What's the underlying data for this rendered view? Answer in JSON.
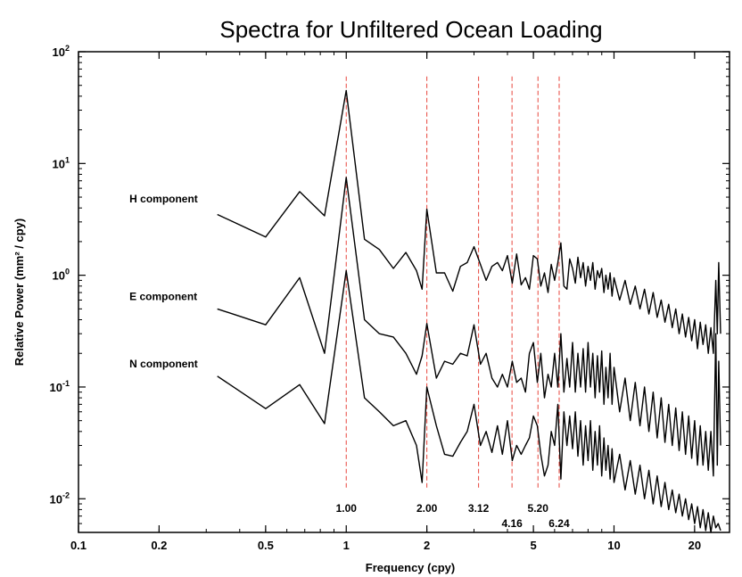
{
  "chart_data": {
    "type": "line",
    "title": "Spectra for Unfiltered Ocean Loading",
    "xlabel": "Frequency (cpy)",
    "ylabel": "Relative Power (mm² / cpy)",
    "x_scale": "log",
    "y_scale": "log",
    "xlim": [
      0.1,
      27
    ],
    "ylim": [
      0.005,
      100
    ],
    "x_ticks": [
      {
        "value": 0.1,
        "label": "0.1"
      },
      {
        "value": 0.2,
        "label": "0.2"
      },
      {
        "value": 0.5,
        "label": "0.5"
      },
      {
        "value": 1,
        "label": "1"
      },
      {
        "value": 2,
        "label": "2"
      },
      {
        "value": 5,
        "label": "5"
      },
      {
        "value": 10,
        "label": "10"
      },
      {
        "value": 20,
        "label": "20"
      }
    ],
    "y_ticks": [
      {
        "value": 0.01,
        "base": "10",
        "exp": "-2"
      },
      {
        "value": 0.1,
        "base": "10",
        "exp": "-1"
      },
      {
        "value": 1,
        "base": "10",
        "exp": "0"
      },
      {
        "value": 10,
        "base": "10",
        "exp": "1"
      },
      {
        "value": 100,
        "base": "10",
        "exp": "2"
      }
    ],
    "reference_lines": [
      {
        "x": 1.0,
        "label": "1.00",
        "label_row": 1
      },
      {
        "x": 2.0,
        "label": "2.00",
        "label_row": 1
      },
      {
        "x": 3.12,
        "label": "3.12",
        "label_row": 1
      },
      {
        "x": 4.16,
        "label": "4.16",
        "label_row": 2
      },
      {
        "x": 5.2,
        "label": "5.20",
        "label_row": 1
      },
      {
        "x": 6.24,
        "label": "6.24",
        "label_row": 2
      }
    ],
    "reference_line_color": "#e8453c",
    "grid": false,
    "series": [
      {
        "name": "H component",
        "label_x": 0.155,
        "label_y": 4.5,
        "points": [
          [
            0.33,
            3.5
          ],
          [
            0.5,
            2.2
          ],
          [
            0.67,
            5.6
          ],
          [
            0.83,
            3.4
          ],
          [
            1.0,
            45
          ],
          [
            1.17,
            2.1
          ],
          [
            1.33,
            1.7
          ],
          [
            1.5,
            1.15
          ],
          [
            1.67,
            1.6
          ],
          [
            1.83,
            1.1
          ],
          [
            1.92,
            0.75
          ],
          [
            2.0,
            3.9
          ],
          [
            2.17,
            1.05
          ],
          [
            2.33,
            1.05
          ],
          [
            2.5,
            0.72
          ],
          [
            2.67,
            1.2
          ],
          [
            2.83,
            1.3
          ],
          [
            3.0,
            1.8
          ],
          [
            3.17,
            1.25
          ],
          [
            3.33,
            0.9
          ],
          [
            3.5,
            1.2
          ],
          [
            3.67,
            1.3
          ],
          [
            3.83,
            1.1
          ],
          [
            4.0,
            1.5
          ],
          [
            4.17,
            0.85
          ],
          [
            4.33,
            1.55
          ],
          [
            4.5,
            0.82
          ],
          [
            4.67,
            0.95
          ],
          [
            4.83,
            0.75
          ],
          [
            5.0,
            1.5
          ],
          [
            5.17,
            1.4
          ],
          [
            5.33,
            0.8
          ],
          [
            5.5,
            1.05
          ],
          [
            5.67,
            0.7
          ],
          [
            5.83,
            1.25
          ],
          [
            6.0,
            0.9
          ],
          [
            6.17,
            1.3
          ],
          [
            6.33,
            1.95
          ],
          [
            6.5,
            0.8
          ],
          [
            6.67,
            0.75
          ],
          [
            6.83,
            1.4
          ],
          [
            7.0,
            1.15
          ],
          [
            7.17,
            0.85
          ],
          [
            7.33,
            1.45
          ],
          [
            7.5,
            0.95
          ],
          [
            7.67,
            1.3
          ],
          [
            7.83,
            0.8
          ],
          [
            8.0,
            1.2
          ],
          [
            8.17,
            0.9
          ],
          [
            8.33,
            1.3
          ],
          [
            8.5,
            0.75
          ],
          [
            8.67,
            1.1
          ],
          [
            8.83,
            0.95
          ],
          [
            9.0,
            1.15
          ],
          [
            9.17,
            0.7
          ],
          [
            9.33,
            1.0
          ],
          [
            9.5,
            0.75
          ],
          [
            9.67,
            1.05
          ],
          [
            9.83,
            0.65
          ],
          [
            10.0,
            0.95
          ],
          [
            10.5,
            0.6
          ],
          [
            11.0,
            0.9
          ],
          [
            11.5,
            0.55
          ],
          [
            12.0,
            0.8
          ],
          [
            12.5,
            0.5
          ],
          [
            13.0,
            0.75
          ],
          [
            13.5,
            0.45
          ],
          [
            14.0,
            0.7
          ],
          [
            14.5,
            0.42
          ],
          [
            15.0,
            0.6
          ],
          [
            15.5,
            0.38
          ],
          [
            16.0,
            0.55
          ],
          [
            16.5,
            0.34
          ],
          [
            17.0,
            0.5
          ],
          [
            17.5,
            0.3
          ],
          [
            18.0,
            0.45
          ],
          [
            18.5,
            0.28
          ],
          [
            19.0,
            0.42
          ],
          [
            19.5,
            0.26
          ],
          [
            20.0,
            0.4
          ],
          [
            20.5,
            0.22
          ],
          [
            21.0,
            0.38
          ],
          [
            21.5,
            0.24
          ],
          [
            22.0,
            0.36
          ],
          [
            22.5,
            0.2
          ],
          [
            23.0,
            0.34
          ],
          [
            23.5,
            0.2
          ],
          [
            24.0,
            0.9
          ],
          [
            24.3,
            0.3
          ],
          [
            24.6,
            1.3
          ],
          [
            25.0,
            0.3
          ]
        ]
      },
      {
        "name": "E component",
        "label_x": 0.155,
        "label_y": 0.6,
        "points": [
          [
            0.33,
            0.5
          ],
          [
            0.5,
            0.36
          ],
          [
            0.67,
            0.95
          ],
          [
            0.83,
            0.2
          ],
          [
            1.0,
            7.5
          ],
          [
            1.17,
            0.4
          ],
          [
            1.33,
            0.3
          ],
          [
            1.5,
            0.28
          ],
          [
            1.67,
            0.2
          ],
          [
            1.83,
            0.13
          ],
          [
            1.92,
            0.19
          ],
          [
            2.0,
            0.37
          ],
          [
            2.17,
            0.12
          ],
          [
            2.33,
            0.17
          ],
          [
            2.5,
            0.16
          ],
          [
            2.67,
            0.2
          ],
          [
            2.83,
            0.19
          ],
          [
            3.0,
            0.36
          ],
          [
            3.17,
            0.16
          ],
          [
            3.33,
            0.2
          ],
          [
            3.5,
            0.12
          ],
          [
            3.67,
            0.1
          ],
          [
            3.83,
            0.13
          ],
          [
            4.0,
            0.1
          ],
          [
            4.17,
            0.17
          ],
          [
            4.33,
            0.11
          ],
          [
            4.5,
            0.12
          ],
          [
            4.67,
            0.09
          ],
          [
            4.83,
            0.2
          ],
          [
            5.0,
            0.25
          ],
          [
            5.17,
            0.11
          ],
          [
            5.33,
            0.2
          ],
          [
            5.5,
            0.08
          ],
          [
            5.67,
            0.13
          ],
          [
            5.83,
            0.1
          ],
          [
            6.0,
            0.2
          ],
          [
            6.17,
            0.1
          ],
          [
            6.33,
            0.3
          ],
          [
            6.5,
            0.09
          ],
          [
            6.67,
            0.18
          ],
          [
            6.83,
            0.1
          ],
          [
            7.0,
            0.25
          ],
          [
            7.17,
            0.09
          ],
          [
            7.33,
            0.2
          ],
          [
            7.5,
            0.1
          ],
          [
            7.67,
            0.22
          ],
          [
            7.83,
            0.09
          ],
          [
            8.0,
            0.25
          ],
          [
            8.17,
            0.1
          ],
          [
            8.33,
            0.2
          ],
          [
            8.5,
            0.08
          ],
          [
            8.67,
            0.19
          ],
          [
            8.83,
            0.09
          ],
          [
            9.0,
            0.21
          ],
          [
            9.17,
            0.07
          ],
          [
            9.33,
            0.15
          ],
          [
            9.5,
            0.08
          ],
          [
            9.67,
            0.2
          ],
          [
            9.83,
            0.07
          ],
          [
            10.0,
            0.15
          ],
          [
            10.5,
            0.06
          ],
          [
            11.0,
            0.12
          ],
          [
            11.5,
            0.05
          ],
          [
            12.0,
            0.11
          ],
          [
            12.5,
            0.045
          ],
          [
            13.0,
            0.1
          ],
          [
            13.5,
            0.04
          ],
          [
            14.0,
            0.09
          ],
          [
            14.5,
            0.035
          ],
          [
            15.0,
            0.08
          ],
          [
            15.5,
            0.032
          ],
          [
            16.0,
            0.07
          ],
          [
            16.5,
            0.03
          ],
          [
            17.0,
            0.065
          ],
          [
            17.5,
            0.027
          ],
          [
            18.0,
            0.06
          ],
          [
            18.5,
            0.025
          ],
          [
            19.0,
            0.055
          ],
          [
            19.5,
            0.023
          ],
          [
            20.0,
            0.05
          ],
          [
            20.5,
            0.02
          ],
          [
            21.0,
            0.045
          ],
          [
            21.5,
            0.02
          ],
          [
            22.0,
            0.04
          ],
          [
            22.5,
            0.018
          ],
          [
            23.0,
            0.04
          ],
          [
            23.5,
            0.016
          ],
          [
            24.0,
            0.3
          ],
          [
            24.3,
            0.02
          ],
          [
            24.6,
            0.17
          ],
          [
            25.0,
            0.03
          ]
        ]
      },
      {
        "name": "N component",
        "label_x": 0.155,
        "label_y": 0.15,
        "points": [
          [
            0.33,
            0.125
          ],
          [
            0.5,
            0.064
          ],
          [
            0.67,
            0.105
          ],
          [
            0.83,
            0.047
          ],
          [
            1.0,
            1.1
          ],
          [
            1.17,
            0.08
          ],
          [
            1.33,
            0.06
          ],
          [
            1.5,
            0.045
          ],
          [
            1.67,
            0.05
          ],
          [
            1.83,
            0.03
          ],
          [
            1.92,
            0.014
          ],
          [
            2.0,
            0.1
          ],
          [
            2.17,
            0.045
          ],
          [
            2.33,
            0.025
          ],
          [
            2.5,
            0.024
          ],
          [
            2.67,
            0.032
          ],
          [
            2.83,
            0.04
          ],
          [
            3.0,
            0.07
          ],
          [
            3.17,
            0.03
          ],
          [
            3.33,
            0.04
          ],
          [
            3.5,
            0.026
          ],
          [
            3.67,
            0.045
          ],
          [
            3.83,
            0.025
          ],
          [
            4.0,
            0.05
          ],
          [
            4.17,
            0.022
          ],
          [
            4.33,
            0.03
          ],
          [
            4.5,
            0.025
          ],
          [
            4.67,
            0.03
          ],
          [
            4.83,
            0.035
          ],
          [
            5.0,
            0.055
          ],
          [
            5.17,
            0.045
          ],
          [
            5.33,
            0.025
          ],
          [
            5.5,
            0.016
          ],
          [
            5.67,
            0.02
          ],
          [
            5.83,
            0.04
          ],
          [
            6.0,
            0.03
          ],
          [
            6.17,
            0.07
          ],
          [
            6.33,
            0.015
          ],
          [
            6.5,
            0.06
          ],
          [
            6.67,
            0.03
          ],
          [
            6.83,
            0.055
          ],
          [
            7.0,
            0.028
          ],
          [
            7.17,
            0.06
          ],
          [
            7.33,
            0.024
          ],
          [
            7.5,
            0.05
          ],
          [
            7.67,
            0.02
          ],
          [
            7.83,
            0.045
          ],
          [
            8.0,
            0.022
          ],
          [
            8.17,
            0.05
          ],
          [
            8.33,
            0.018
          ],
          [
            8.5,
            0.04
          ],
          [
            8.67,
            0.02
          ],
          [
            8.83,
            0.045
          ],
          [
            9.0,
            0.016
          ],
          [
            9.17,
            0.035
          ],
          [
            9.33,
            0.018
          ],
          [
            9.5,
            0.03
          ],
          [
            9.67,
            0.015
          ],
          [
            9.83,
            0.028
          ],
          [
            10.0,
            0.014
          ],
          [
            10.5,
            0.025
          ],
          [
            11.0,
            0.012
          ],
          [
            11.5,
            0.022
          ],
          [
            12.0,
            0.011
          ],
          [
            12.5,
            0.02
          ],
          [
            13.0,
            0.01
          ],
          [
            13.5,
            0.018
          ],
          [
            14.0,
            0.009
          ],
          [
            14.5,
            0.016
          ],
          [
            15.0,
            0.0085
          ],
          [
            15.5,
            0.014
          ],
          [
            16.0,
            0.008
          ],
          [
            16.5,
            0.012
          ],
          [
            17.0,
            0.0075
          ],
          [
            17.5,
            0.011
          ],
          [
            18.0,
            0.007
          ],
          [
            18.5,
            0.01
          ],
          [
            19.0,
            0.0065
          ],
          [
            19.5,
            0.009
          ],
          [
            20.0,
            0.006
          ],
          [
            20.5,
            0.0085
          ],
          [
            21.0,
            0.0055
          ],
          [
            21.5,
            0.008
          ],
          [
            22.0,
            0.0052
          ],
          [
            22.5,
            0.0075
          ],
          [
            23.0,
            0.005
          ],
          [
            23.5,
            0.007
          ],
          [
            24.0,
            0.0055
          ],
          [
            24.5,
            0.006
          ],
          [
            25.0,
            0.0052
          ]
        ]
      }
    ]
  }
}
